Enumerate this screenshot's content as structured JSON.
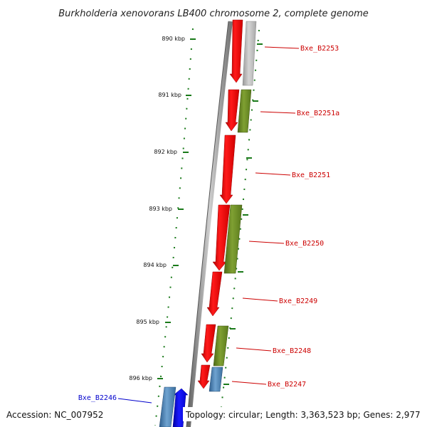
{
  "title": "Burkholderia xenovorans LB400 chromosome 2, complete genome",
  "footer": {
    "accession": "Accession: NC_007952",
    "summary": "Topology: circular; Length: 3,363,523 bp; Genes: 2,977"
  },
  "scale": {
    "ticks": [
      "890 kbp",
      "891 kbp",
      "892 kbp",
      "893 kbp",
      "894 kbp",
      "895 kbp",
      "896 kbp"
    ],
    "tick_color": "#1a7a1a"
  },
  "genes": [
    {
      "label": "Bxe_B2253",
      "color": "#cc0000"
    },
    {
      "label": "Bxe_B2251a",
      "color": "#cc0000"
    },
    {
      "label": "Bxe_B2251",
      "color": "#cc0000"
    },
    {
      "label": "Bxe_B2250",
      "color": "#cc0000"
    },
    {
      "label": "Bxe_B2249",
      "color": "#cc0000"
    },
    {
      "label": "Bxe_B2248",
      "color": "#cc0000"
    },
    {
      "label": "Bxe_B2247",
      "color": "#cc0000"
    },
    {
      "label": "Bxe_B2246",
      "color": "#0000cc"
    }
  ],
  "colors": {
    "cds_forward": "#ff0000",
    "cds_reverse": "#0000ff",
    "feature_green": "#6b8e23",
    "feature_gray": "#b8b8b8",
    "feature_blue": "#4682b4",
    "backbone": "#888888"
  }
}
